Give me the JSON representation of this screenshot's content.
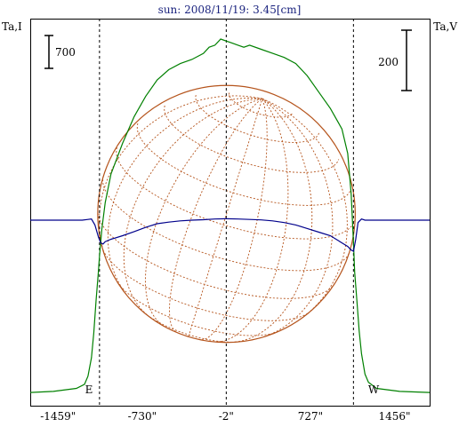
{
  "chart_data": {
    "type": "line",
    "title": "sun: 2008/11/19: 3.45[cm]",
    "ylabel_left": "Ta,I",
    "ylabel_right": "Ta,V",
    "scale_left": "700",
    "scale_right": "200",
    "limb_left_label": "E",
    "limb_right_label": "W",
    "xlim": [
      -1700,
      1760
    ],
    "xticks": [
      "-1459\"",
      "-730\"",
      "-2\"",
      "727\"",
      "1456\""
    ],
    "xtick_values": [
      -1459,
      -730,
      -2,
      727,
      1456
    ],
    "limb_lines": [
      -1100,
      1100
    ],
    "center_line": -2,
    "solar_radius": 1100,
    "grid": false,
    "colors": {
      "stokes_I": "#008000",
      "stokes_V": "#00008b",
      "disk": "#b5541c",
      "axes": "#000000",
      "title": "#1a237e"
    },
    "series": [
      {
        "name": "",
        "stokes": "I",
        "color": "#008000",
        "x": [
          -1700,
          -1500,
          -1300,
          -1230,
          -1200,
          -1170,
          -1150,
          -1130,
          -1110,
          -1100,
          -1080,
          -1050,
          -1000,
          -900,
          -800,
          -700,
          -600,
          -500,
          -400,
          -300,
          -200,
          -150,
          -100,
          -50,
          0,
          50,
          100,
          150,
          200,
          300,
          400,
          500,
          600,
          700,
          800,
          900,
          1000,
          1050,
          1080,
          1100,
          1110,
          1130,
          1150,
          1170,
          1200,
          1230,
          1300,
          1500,
          1760
        ],
        "y": [
          30,
          35,
          50,
          70,
          110,
          200,
          320,
          480,
          620,
          700,
          830,
          960,
          1100,
          1250,
          1380,
          1480,
          1560,
          1610,
          1640,
          1660,
          1690,
          1720,
          1730,
          1760,
          1750,
          1740,
          1730,
          1720,
          1730,
          1710,
          1690,
          1670,
          1640,
          1580,
          1500,
          1420,
          1320,
          1200,
          1000,
          760,
          620,
          480,
          330,
          220,
          120,
          80,
          50,
          35,
          30
        ]
      },
      {
        "name": "",
        "stokes": "V",
        "color": "#00008b",
        "x": [
          -1700,
          -1400,
          -1250,
          -1200,
          -1170,
          -1140,
          -1110,
          -1090,
          -1070,
          -1050,
          -1000,
          -900,
          -800,
          -700,
          -600,
          -500,
          -400,
          -300,
          -200,
          -100,
          0,
          100,
          200,
          300,
          400,
          500,
          600,
          700,
          800,
          900,
          1000,
          1050,
          1080,
          1100,
          1120,
          1140,
          1170,
          1200,
          1300,
          1500,
          1760
        ],
        "y": [
          0,
          0,
          0,
          3,
          5,
          -20,
          -70,
          -95,
          -100,
          -90,
          -80,
          -65,
          -48,
          -30,
          -15,
          -8,
          -3,
          0,
          2,
          5,
          6,
          5,
          3,
          1,
          -3,
          -10,
          -20,
          -35,
          -50,
          -65,
          -95,
          -110,
          -125,
          -130,
          -80,
          -10,
          5,
          0,
          0,
          0,
          0
        ]
      }
    ]
  }
}
